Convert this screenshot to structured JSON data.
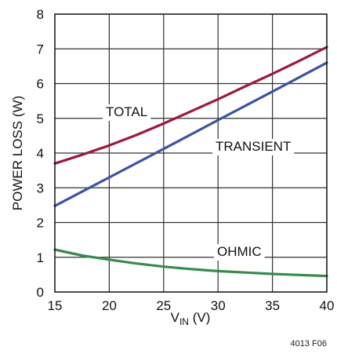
{
  "chart_data": {
    "type": "line",
    "title": "",
    "xlabel": "V",
    "xlabel_sub": "IN",
    "xlabel_unit": " (V)",
    "ylabel": "POWER LOSS (W)",
    "xlim": [
      15,
      40
    ],
    "ylim": [
      0,
      8
    ],
    "x_ticks": [
      15,
      20,
      25,
      30,
      35,
      40
    ],
    "x_tick_labels": [
      "15",
      "20",
      "25",
      "30",
      "35",
      "40"
    ],
    "y_ticks": [
      0,
      1,
      2,
      3,
      4,
      5,
      6,
      7,
      8
    ],
    "y_tick_labels": [
      "0",
      "1",
      "2",
      "3",
      "4",
      "5",
      "6",
      "7",
      "8"
    ],
    "grid": true,
    "series": [
      {
        "name": "TOTAL",
        "color": "#9b1b3c",
        "x": [
          15,
          17.5,
          20,
          22.5,
          25,
          27.5,
          30,
          32.5,
          35,
          37.5,
          40
        ],
        "y": [
          3.7,
          3.95,
          4.22,
          4.52,
          4.85,
          5.2,
          5.55,
          5.92,
          6.28,
          6.66,
          7.05
        ]
      },
      {
        "name": "TRANSIENT",
        "color": "#3b55a0",
        "x": [
          15,
          20,
          25,
          30,
          35,
          40
        ],
        "y": [
          2.48,
          3.3,
          4.12,
          4.95,
          5.77,
          6.6
        ]
      },
      {
        "name": "OHMIC",
        "color": "#3a8a4f",
        "x": [
          15,
          17.5,
          20,
          22.5,
          25,
          27.5,
          30,
          32.5,
          35,
          37.5,
          40
        ],
        "y": [
          1.22,
          1.05,
          0.93,
          0.82,
          0.73,
          0.66,
          0.6,
          0.56,
          0.52,
          0.49,
          0.46
        ]
      }
    ],
    "annotations": [
      {
        "text": "TOTAL",
        "series": "TOTAL"
      },
      {
        "text": "TRANSIENT",
        "series": "TRANSIENT"
      },
      {
        "text": "OHMIC",
        "series": "OHMIC"
      }
    ]
  },
  "figure_id": "4013 F06"
}
